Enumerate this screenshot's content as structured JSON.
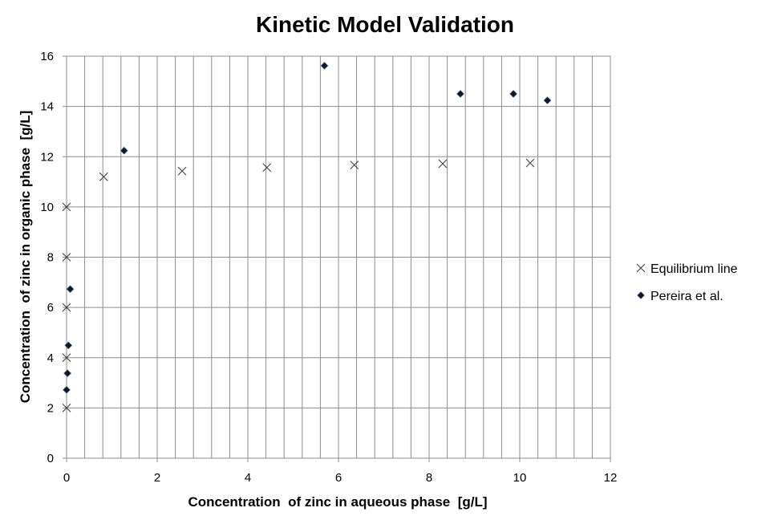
{
  "chart_data": {
    "type": "scatter",
    "title": "Kinetic Model Validation",
    "xlabel": "Concentration  of zinc in aqueous phase  [g/L]",
    "ylabel": "Concentration  of zinc in organic phase  [g/L]",
    "xlim": [
      0,
      12
    ],
    "ylim": [
      0,
      16
    ],
    "x_ticks": [
      0,
      2,
      4,
      6,
      8,
      10,
      12
    ],
    "y_ticks": [
      0,
      2,
      4,
      6,
      8,
      10,
      12,
      14,
      16
    ],
    "x_minor_step": 0.4,
    "grid": true,
    "legend_position": "right",
    "series": [
      {
        "name": "Equilibrium line",
        "marker": "x",
        "color": "#404040",
        "points": [
          [
            0.0,
            2.0
          ],
          [
            0.0,
            4.0
          ],
          [
            0.0,
            6.0
          ],
          [
            0.0,
            8.0
          ],
          [
            0.0,
            10.0
          ],
          [
            0.82,
            11.2
          ],
          [
            2.55,
            11.43
          ],
          [
            4.42,
            11.57
          ],
          [
            6.35,
            11.67
          ],
          [
            8.3,
            11.72
          ],
          [
            10.23,
            11.75
          ]
        ]
      },
      {
        "name": "Pereira et al.",
        "marker": "diamond",
        "color": "#0a1a30",
        "points": [
          [
            0.0,
            2.72
          ],
          [
            0.02,
            3.38
          ],
          [
            0.04,
            4.49
          ],
          [
            0.08,
            6.73
          ],
          [
            1.27,
            12.24
          ],
          [
            5.69,
            15.62
          ],
          [
            8.69,
            14.5
          ],
          [
            9.86,
            14.5
          ],
          [
            10.61,
            14.24
          ]
        ]
      }
    ]
  }
}
